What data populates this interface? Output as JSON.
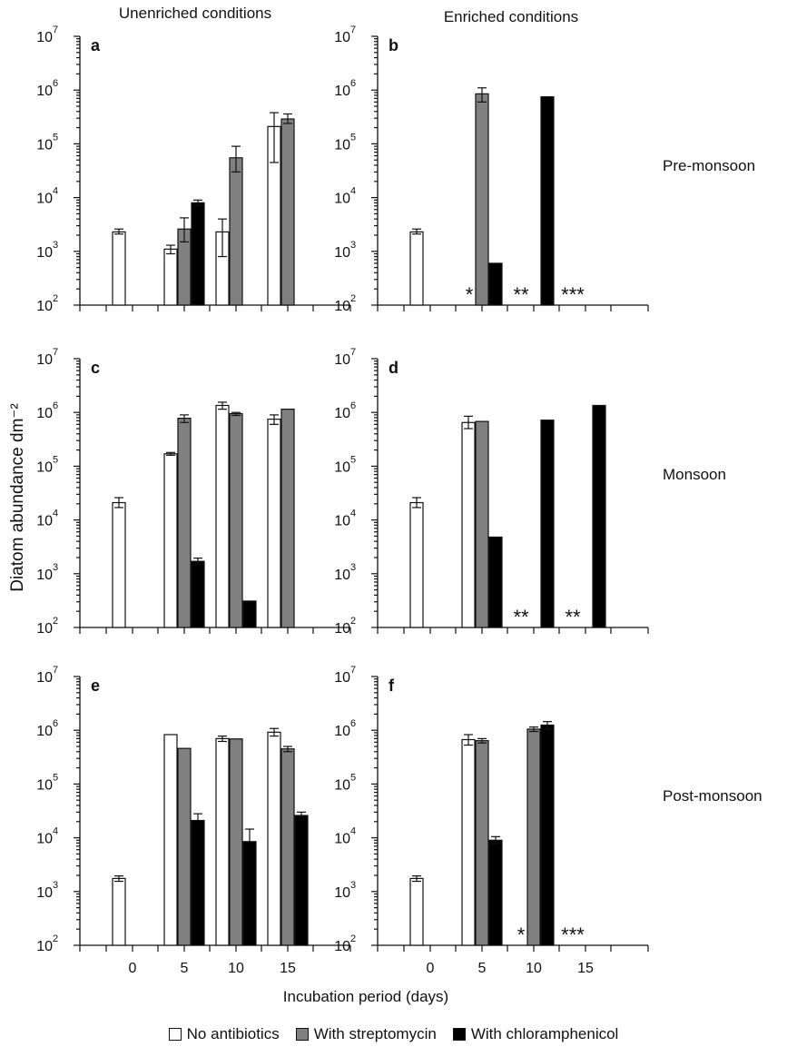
{
  "col_titles": [
    "Unenriched conditions",
    "Enriched conditions"
  ],
  "row_labels": [
    "Pre-monsoon",
    "Monsoon",
    "Post-monsoon"
  ],
  "ylabel": "Diatom abundance dm⁻²",
  "xlabel": "Incubation period (days)",
  "legend": [
    {
      "label": "No antibiotics",
      "color": "#ffffff"
    },
    {
      "label": "With streptomycin",
      "color": "#808080"
    },
    {
      "label": "With chloramphenicol",
      "color": "#000000"
    }
  ],
  "chart_data": [
    {
      "type": "bar",
      "panel": "a",
      "log_scale": true,
      "ylim": [
        100,
        10000000
      ],
      "y_ticks": [
        "10",
        "10",
        "10",
        "10",
        "10",
        "10"
      ],
      "y_tick_exps": [
        "2",
        "3",
        "4",
        "5",
        "6",
        "7"
      ],
      "categories": [
        "0",
        "5",
        "10",
        "15"
      ],
      "series": [
        {
          "name": "No antibiotics",
          "values": [
            2300,
            1100,
            2300,
            210000
          ],
          "errors": [
            [
              2100,
              2600
            ],
            [
              900,
              1300
            ],
            [
              800,
              4000
            ],
            [
              45000,
              380000
            ]
          ]
        },
        {
          "name": "With streptomycin",
          "values": [
            null,
            2600,
            55000,
            290000
          ],
          "errors": [
            [
              null,
              null
            ],
            [
              1500,
              4200
            ],
            [
              30000,
              90000
            ],
            [
              240000,
              360000
            ]
          ]
        },
        {
          "name": "With chloramphenicol",
          "values": [
            null,
            8000,
            null,
            null
          ],
          "errors": [
            [
              null,
              null
            ],
            [
              7200,
              9000
            ],
            [
              null,
              null
            ],
            [
              null,
              null
            ]
          ]
        }
      ],
      "annotations": []
    },
    {
      "type": "bar",
      "panel": "b",
      "log_scale": true,
      "ylim": [
        100,
        10000000
      ],
      "y_ticks": [
        "10",
        "10",
        "10",
        "10",
        "10",
        "10"
      ],
      "y_tick_exps": [
        "2",
        "3",
        "4",
        "5",
        "6",
        "7"
      ],
      "categories": [
        "0",
        "5",
        "10",
        "15"
      ],
      "series": [
        {
          "name": "No antibiotics",
          "values": [
            2300,
            null,
            null,
            null
          ],
          "errors": [
            [
              2100,
              2600
            ],
            [
              null,
              null
            ],
            [
              null,
              null
            ],
            [
              null,
              null
            ]
          ]
        },
        {
          "name": "With streptomycin",
          "values": [
            null,
            850000,
            null,
            null
          ],
          "errors": [
            [
              null,
              null
            ],
            [
              600000,
              1100000
            ],
            [
              null,
              null
            ],
            [
              null,
              null
            ]
          ]
        },
        {
          "name": "With chloramphenicol",
          "values": [
            null,
            600,
            750000,
            null
          ],
          "errors": [
            [
              null,
              null
            ],
            [
              null,
              null
            ],
            [
              null,
              null
            ],
            [
              null,
              null
            ]
          ]
        }
      ],
      "annotations": [
        {
          "category": "5",
          "text": "*"
        },
        {
          "category": "10",
          "text": "**"
        },
        {
          "category": "15",
          "text": "***"
        }
      ]
    },
    {
      "type": "bar",
      "panel": "c",
      "log_scale": true,
      "ylim": [
        100,
        10000000
      ],
      "y_ticks": [
        "10",
        "10",
        "10",
        "10",
        "10",
        "10"
      ],
      "y_tick_exps": [
        "2",
        "3",
        "4",
        "5",
        "6",
        "7"
      ],
      "categories": [
        "0",
        "5",
        "10",
        "15"
      ],
      "series": [
        {
          "name": "No antibiotics",
          "values": [
            21000,
            170000,
            1350000,
            750000
          ],
          "errors": [
            [
              17000,
              26000
            ],
            [
              160000,
              180000
            ],
            [
              1150000,
              1550000
            ],
            [
              600000,
              900000
            ]
          ]
        },
        {
          "name": "With streptomycin",
          "values": [
            null,
            780000,
            950000,
            1150000
          ],
          "errors": [
            [
              null,
              null
            ],
            [
              650000,
              900000
            ],
            [
              880000,
              1000000
            ],
            [
              null,
              null
            ]
          ]
        },
        {
          "name": "With chloramphenicol",
          "values": [
            null,
            1700,
            310,
            null
          ],
          "errors": [
            [
              null,
              null
            ],
            [
              1500,
              1950
            ],
            [
              null,
              null
            ],
            [
              null,
              null
            ]
          ]
        }
      ],
      "annotations": []
    },
    {
      "type": "bar",
      "panel": "d",
      "log_scale": true,
      "ylim": [
        100,
        10000000
      ],
      "y_ticks": [
        "10",
        "10",
        "10",
        "10",
        "10",
        "10"
      ],
      "y_tick_exps": [
        "2",
        "3",
        "4",
        "5",
        "6",
        "7"
      ],
      "categories": [
        "0",
        "5",
        "10",
        "15"
      ],
      "series": [
        {
          "name": "No antibiotics",
          "values": [
            21000,
            650000,
            null,
            null
          ],
          "errors": [
            [
              17000,
              26000
            ],
            [
              500000,
              850000
            ],
            [
              null,
              null
            ],
            [
              null,
              null
            ]
          ]
        },
        {
          "name": "With streptomycin",
          "values": [
            null,
            680000,
            null,
            null
          ],
          "errors": [
            [
              null,
              null
            ],
            [
              null,
              null
            ],
            [
              null,
              null
            ],
            [
              null,
              null
            ]
          ]
        },
        {
          "name": "With chloramphenicol",
          "values": [
            null,
            4800,
            720000,
            1350000
          ],
          "errors": [
            [
              null,
              null
            ],
            [
              null,
              null
            ],
            [
              null,
              null
            ],
            [
              null,
              null
            ]
          ]
        }
      ],
      "annotations": [
        {
          "category": "10",
          "text": "**"
        },
        {
          "category": "15",
          "text": "**"
        }
      ]
    },
    {
      "type": "bar",
      "panel": "e",
      "log_scale": true,
      "ylim": [
        100,
        10000000
      ],
      "y_ticks": [
        "10",
        "10",
        "10",
        "10",
        "10",
        "10"
      ],
      "y_tick_exps": [
        "2",
        "3",
        "4",
        "5",
        "6",
        "7"
      ],
      "categories": [
        "0",
        "5",
        "10",
        "15"
      ],
      "series": [
        {
          "name": "No antibiotics",
          "values": [
            1750,
            830000,
            700000,
            920000
          ],
          "errors": [
            [
              1550,
              1950
            ],
            [
              null,
              null
            ],
            [
              620000,
              780000
            ],
            [
              780000,
              1080000
            ]
          ]
        },
        {
          "name": "With streptomycin",
          "values": [
            null,
            460000,
            690000,
            450000
          ],
          "errors": [
            [
              null,
              null
            ],
            [
              null,
              null
            ],
            [
              null,
              null
            ],
            [
              400000,
              500000
            ]
          ]
        },
        {
          "name": "With chloramphenicol",
          "values": [
            null,
            21000,
            8500,
            26000
          ],
          "errors": [
            [
              null,
              null
            ],
            [
              null,
              28000
            ],
            [
              null,
              14500
            ],
            [
              null,
              30000
            ]
          ]
        }
      ],
      "annotations": []
    },
    {
      "type": "bar",
      "panel": "f",
      "log_scale": true,
      "ylim": [
        100,
        10000000
      ],
      "y_ticks": [
        "10",
        "10",
        "10",
        "10",
        "10",
        "10"
      ],
      "y_tick_exps": [
        "2",
        "3",
        "4",
        "5",
        "6",
        "7"
      ],
      "categories": [
        "0",
        "5",
        "10",
        "15"
      ],
      "series": [
        {
          "name": "No antibiotics",
          "values": [
            1750,
            670000,
            null,
            null
          ],
          "errors": [
            [
              1550,
              1950
            ],
            [
              530000,
              830000
            ],
            [
              null,
              null
            ],
            [
              null,
              null
            ]
          ]
        },
        {
          "name": "With streptomycin",
          "values": [
            null,
            640000,
            1050000,
            null
          ],
          "errors": [
            [
              null,
              null
            ],
            [
              580000,
              700000
            ],
            [
              950000,
              1150000
            ],
            [
              null,
              null
            ]
          ]
        },
        {
          "name": "With chloramphenicol",
          "values": [
            null,
            9000,
            1250000,
            null
          ],
          "errors": [
            [
              null,
              null
            ],
            [
              7800,
              10500
            ],
            [
              1050000,
              1450000
            ],
            [
              null,
              null
            ]
          ]
        }
      ],
      "annotations": [
        {
          "category": "10",
          "text": "*"
        },
        {
          "category": "15",
          "text": "***"
        }
      ]
    }
  ]
}
